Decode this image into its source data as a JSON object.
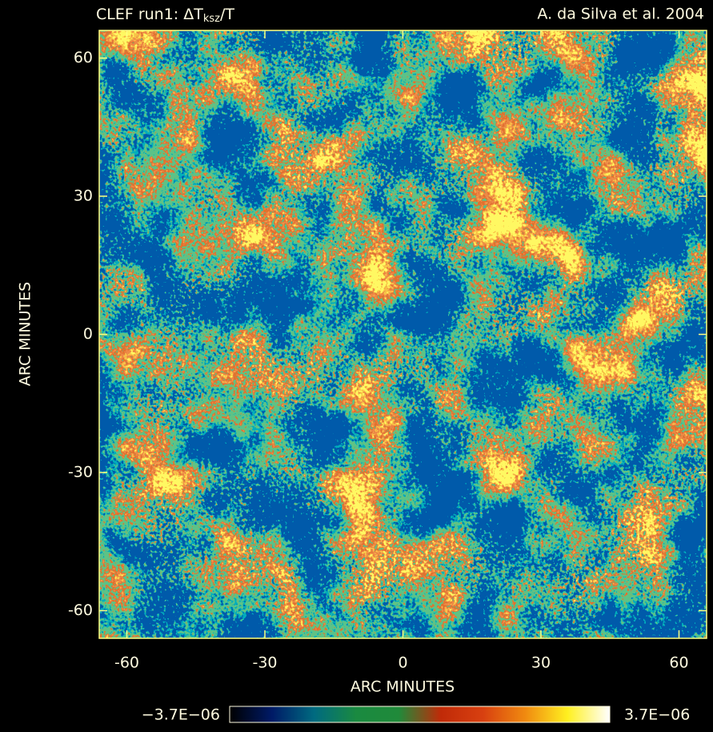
{
  "chart_data": {
    "type": "heatmap",
    "title": {
      "main": "CLEF run1: ΔT",
      "subscript": "ksz",
      "suffix": "/T"
    },
    "credit": "A. da Silva et al. 2004",
    "xlabel": "ARC MINUTES",
    "ylabel": "ARC MINUTES",
    "xlim": [
      -66,
      66
    ],
    "ylim": [
      -66,
      66
    ],
    "xticks": [
      -60,
      -30,
      0,
      30,
      60
    ],
    "yticks": [
      -60,
      -30,
      0,
      30,
      60
    ],
    "colorbar": {
      "range": [
        {
          "value": -3.7e-06,
          "label": "−3.7E−06"
        },
        {
          "value": 3.7e-06,
          "label": "3.7E−06"
        }
      ]
    },
    "colormap": [
      "#000000",
      "#001a66",
      "#006a80",
      "#1a8a40",
      "#208a3a",
      "#c02a08",
      "#d84010",
      "#f08a10",
      "#fff020",
      "#ffffff"
    ],
    "axis_color": "#ffff80"
  }
}
